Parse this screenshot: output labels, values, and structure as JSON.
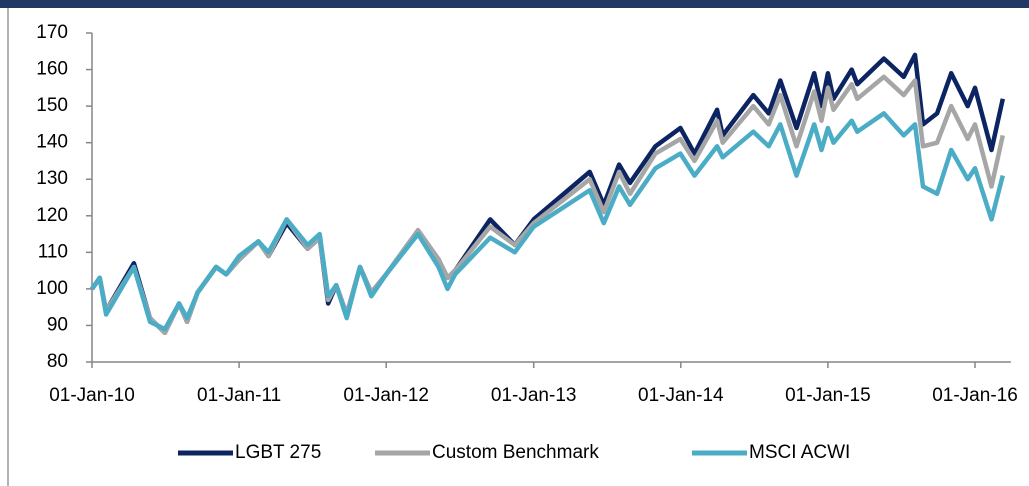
{
  "chart_data": {
    "type": "line",
    "x": [
      "2010-01-01",
      "2010-01-20",
      "2010-02-05",
      "2010-04-15",
      "2010-05-25",
      "2010-07-01",
      "2010-08-05",
      "2010-08-25",
      "2010-09-20",
      "2010-11-05",
      "2010-11-30",
      "2011-01-01",
      "2011-02-18",
      "2011-03-15",
      "2011-04-29",
      "2011-06-20",
      "2011-07-20",
      "2011-08-10",
      "2011-08-30",
      "2011-09-25",
      "2011-10-28",
      "2011-11-25",
      "2012-01-01",
      "2012-03-20",
      "2012-05-10",
      "2012-06-01",
      "2012-06-20",
      "2012-09-15",
      "2012-11-15",
      "2013-01-01",
      "2013-05-20",
      "2013-06-24",
      "2013-08-01",
      "2013-08-28",
      "2013-10-30",
      "2013-12-31",
      "2014-02-04",
      "2014-04-01",
      "2014-04-15",
      "2014-06-30",
      "2014-08-07",
      "2014-09-05",
      "2014-10-15",
      "2014-11-28",
      "2014-12-16",
      "2015-01-01",
      "2015-01-15",
      "2015-03-01",
      "2015-03-15",
      "2015-05-20",
      "2015-07-08",
      "2015-08-05",
      "2015-08-25",
      "2015-09-29",
      "2015-11-03",
      "2015-12-14",
      "2016-01-01",
      "2016-02-11",
      "2016-03-10"
    ],
    "series": [
      {
        "name": "LGBT 275",
        "color": "#0c2461",
        "values": [
          100,
          103,
          94,
          107,
          92,
          88,
          96,
          91,
          99,
          106,
          104,
          108,
          113,
          109,
          118,
          111,
          114,
          96,
          101,
          93,
          106,
          99,
          104,
          116,
          108,
          103,
          105,
          119,
          112,
          119,
          132,
          123,
          134,
          129,
          139,
          144,
          137,
          149,
          142,
          153,
          148,
          157,
          144,
          159,
          150,
          159,
          152,
          160,
          156,
          163,
          158,
          164,
          145,
          148,
          159,
          150,
          155,
          138,
          152
        ]
      },
      {
        "name": "Custom Benchmark",
        "color": "#a6a6a6",
        "values": [
          100,
          103,
          94,
          106,
          92,
          88,
          96,
          91,
          99,
          106,
          104,
          108,
          113,
          109,
          119,
          111,
          114,
          97,
          101,
          93,
          106,
          99,
          104,
          116,
          108,
          103,
          105,
          117,
          112,
          118,
          130,
          121,
          132,
          126,
          137,
          141,
          135,
          146,
          140,
          150,
          145,
          153,
          139,
          154,
          146,
          155,
          149,
          156,
          152,
          158,
          153,
          157,
          139,
          140,
          150,
          141,
          145,
          128,
          142
        ]
      },
      {
        "name": "MSCI ACWI",
        "color": "#4bacc6",
        "values": [
          100,
          103,
          93,
          106,
          91,
          89,
          96,
          92,
          99,
          106,
          104,
          109,
          113,
          110,
          119,
          112,
          115,
          98,
          101,
          92,
          106,
          98,
          104,
          115,
          106,
          100,
          104,
          114,
          110,
          117,
          127,
          118,
          128,
          123,
          133,
          137,
          131,
          139,
          136,
          143,
          139,
          145,
          131,
          145,
          138,
          144,
          140,
          146,
          143,
          148,
          142,
          145,
          128,
          126,
          138,
          130,
          133,
          119,
          131
        ]
      }
    ],
    "xlim": [
      "2010-01-01",
      "2016-03-15"
    ],
    "xticks": [
      {
        "value": "2010-01-01",
        "label": "01-Jan-10"
      },
      {
        "value": "2011-01-01",
        "label": "01-Jan-11"
      },
      {
        "value": "2012-01-01",
        "label": "01-Jan-12"
      },
      {
        "value": "2013-01-01",
        "label": "01-Jan-13"
      },
      {
        "value": "2014-01-01",
        "label": "01-Jan-14"
      },
      {
        "value": "2015-01-01",
        "label": "01-Jan-15"
      },
      {
        "value": "2016-01-01",
        "label": "01-Jan-16"
      }
    ],
    "ylim": [
      80,
      170
    ],
    "yticks": [
      80,
      90,
      100,
      110,
      120,
      130,
      140,
      150,
      160,
      170
    ],
    "legend": "bottom"
  }
}
